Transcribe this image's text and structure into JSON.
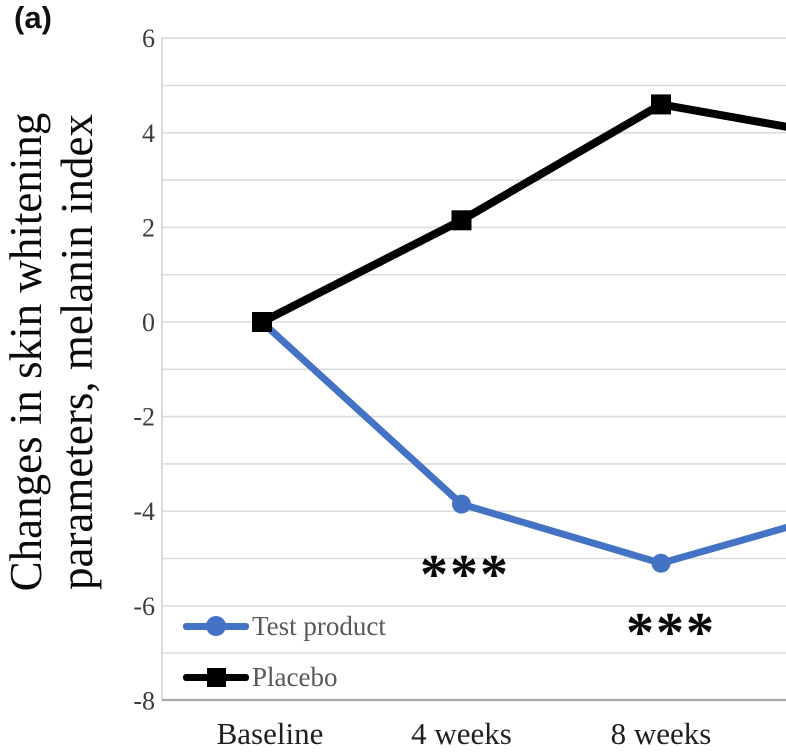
{
  "panel_label": "(a)",
  "y_axis_title": {
    "line1": "Changes in skin whitening",
    "line2": "parameters, melanin index"
  },
  "chart_data": {
    "type": "line",
    "title": "",
    "ylabel": "Changes in skin whitening parameters, melanin index",
    "xlabel": "",
    "categories": [
      "Baseline",
      "4 weeks",
      "8 weeks"
    ],
    "series": [
      {
        "name": "Test product",
        "color": "#4472c4",
        "marker": "circle",
        "values": [
          0,
          -3.85,
          -5.1
        ],
        "cropped_continuation_value": -3.9
      },
      {
        "name": "Placebo",
        "color": "#000000",
        "marker": "square",
        "values": [
          0,
          2.15,
          4.6
        ],
        "cropped_continuation_value": 3.85
      }
    ],
    "ylim": [
      -8,
      6
    ],
    "ytick_labels": [
      6,
      4,
      2,
      0,
      -2,
      -4,
      -6,
      -8
    ],
    "gridline_interval": 1,
    "grid": true,
    "legend_position": "inside-bottom-left",
    "annotations": [
      {
        "text": "***",
        "near_category": "4 weeks",
        "series": "Test product"
      },
      {
        "text": "***",
        "near_category": "8 weeks",
        "series": "Test product"
      }
    ],
    "crop_note": "plot cropped at right edge; both lines continue toward an off-frame fourth timepoint"
  }
}
